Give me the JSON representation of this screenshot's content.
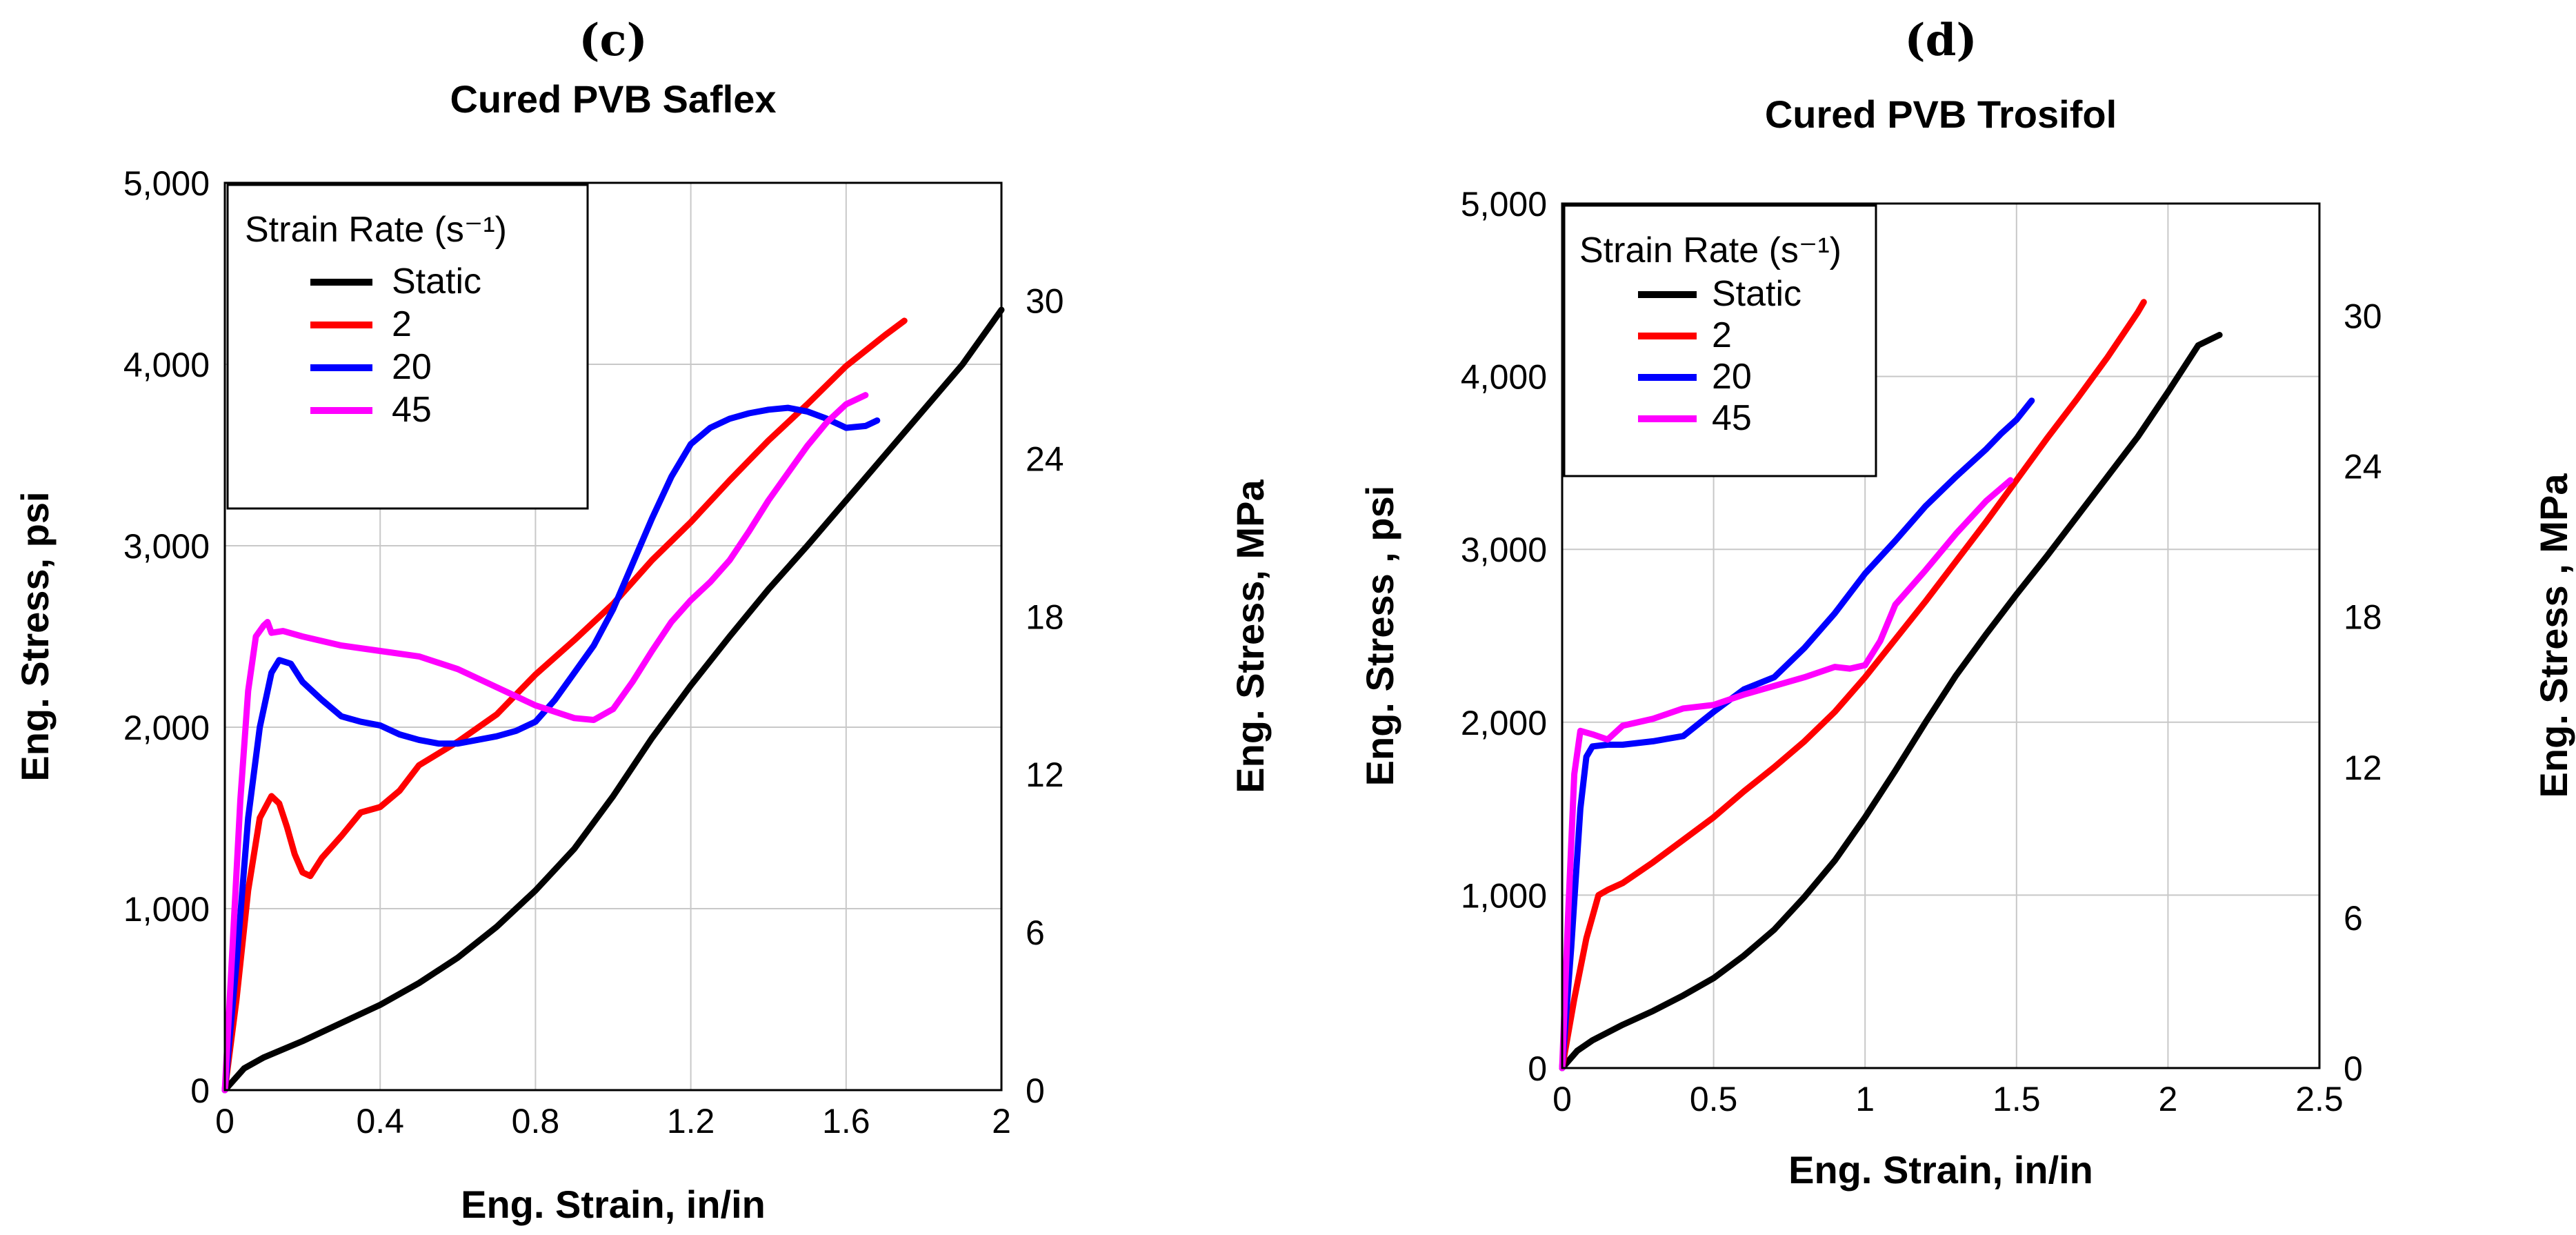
{
  "chart_data": [
    {
      "panel": "(c)",
      "type": "line",
      "title": "Cured PVB Saflex",
      "xlabel": "Eng. Strain, in/in",
      "ylabel": "Eng. Stress, psi",
      "y2label": "Eng. Stress, MPa",
      "xlim": [
        0,
        2
      ],
      "ylim": [
        0,
        5000
      ],
      "y2lim": [
        0,
        34.47
      ],
      "xticks": [
        0,
        0.4,
        0.8,
        1.2,
        1.6,
        2
      ],
      "xtick_labels": [
        "0",
        "0.4",
        "0.8",
        "1.2",
        "1.6",
        "2"
      ],
      "yticks": [
        0,
        1000,
        2000,
        3000,
        4000,
        5000
      ],
      "ytick_labels": [
        "0",
        "1,000",
        "2,000",
        "3,000",
        "4,000",
        "5,000"
      ],
      "y2ticks": [
        0,
        6,
        12,
        18,
        24,
        30
      ],
      "y2tick_labels": [
        "0",
        "6",
        "12",
        "18",
        "24",
        "30"
      ],
      "legend_title": "Strain Rate (s⁻¹)",
      "legend_position": "top-left",
      "grid": true,
      "series": [
        {
          "name": "Static",
          "color": "#000000",
          "x": [
            0,
            0.05,
            0.1,
            0.2,
            0.3,
            0.4,
            0.5,
            0.6,
            0.7,
            0.8,
            0.9,
            1.0,
            1.1,
            1.2,
            1.3,
            1.4,
            1.5,
            1.6,
            1.7,
            1.8,
            1.9,
            2.0
          ],
          "y": [
            0,
            120,
            180,
            270,
            370,
            470,
            590,
            730,
            900,
            1100,
            1330,
            1620,
            1940,
            2230,
            2500,
            2760,
            3000,
            3250,
            3500,
            3750,
            4000,
            4300
          ]
        },
        {
          "name": "2",
          "color": "#ff0000",
          "x": [
            0,
            0.03,
            0.06,
            0.09,
            0.12,
            0.14,
            0.16,
            0.18,
            0.2,
            0.22,
            0.25,
            0.3,
            0.35,
            0.4,
            0.45,
            0.5,
            0.6,
            0.7,
            0.8,
            0.9,
            1.0,
            1.1,
            1.2,
            1.3,
            1.4,
            1.5,
            1.6,
            1.7,
            1.75
          ],
          "y": [
            0,
            500,
            1100,
            1500,
            1620,
            1580,
            1450,
            1300,
            1200,
            1180,
            1280,
            1400,
            1530,
            1560,
            1650,
            1790,
            1920,
            2070,
            2290,
            2480,
            2680,
            2920,
            3130,
            3360,
            3580,
            3780,
            3990,
            4160,
            4240
          ]
        },
        {
          "name": "20",
          "color": "#0000ff",
          "x": [
            0,
            0.03,
            0.06,
            0.09,
            0.12,
            0.14,
            0.17,
            0.2,
            0.25,
            0.3,
            0.35,
            0.4,
            0.45,
            0.5,
            0.55,
            0.6,
            0.65,
            0.7,
            0.75,
            0.8,
            0.85,
            0.9,
            0.95,
            1.0,
            1.05,
            1.1,
            1.15,
            1.2,
            1.25,
            1.3,
            1.35,
            1.4,
            1.45,
            1.5,
            1.55,
            1.6,
            1.65,
            1.68
          ],
          "y": [
            0,
            700,
            1500,
            2000,
            2300,
            2370,
            2350,
            2250,
            2150,
            2060,
            2030,
            2010,
            1960,
            1930,
            1910,
            1910,
            1930,
            1950,
            1980,
            2030,
            2150,
            2300,
            2450,
            2650,
            2900,
            3150,
            3380,
            3560,
            3650,
            3700,
            3730,
            3750,
            3760,
            3740,
            3700,
            3650,
            3660,
            3690
          ]
        },
        {
          "name": "45",
          "color": "#ff00ff",
          "x": [
            0,
            0.02,
            0.04,
            0.06,
            0.08,
            0.1,
            0.11,
            0.12,
            0.15,
            0.2,
            0.3,
            0.4,
            0.5,
            0.6,
            0.7,
            0.8,
            0.9,
            0.95,
            1.0,
            1.05,
            1.1,
            1.15,
            1.2,
            1.25,
            1.3,
            1.35,
            1.4,
            1.45,
            1.5,
            1.55,
            1.6,
            1.65
          ],
          "y": [
            0,
            800,
            1600,
            2200,
            2500,
            2560,
            2580,
            2520,
            2530,
            2500,
            2450,
            2420,
            2390,
            2320,
            2220,
            2120,
            2050,
            2040,
            2100,
            2250,
            2420,
            2580,
            2700,
            2800,
            2920,
            3080,
            3250,
            3400,
            3550,
            3680,
            3780,
            3830
          ]
        }
      ]
    },
    {
      "panel": "(d)",
      "type": "line",
      "title": "Cured PVB Trosifol",
      "xlabel": "Eng. Strain, in/in",
      "ylabel": "Eng. Stress , psi",
      "y2label": "Eng. Stress , MPa",
      "xlim": [
        0,
        2.5
      ],
      "ylim": [
        0,
        5000
      ],
      "y2lim": [
        0,
        34.47
      ],
      "xticks": [
        0,
        0.5,
        1,
        1.5,
        2,
        2.5
      ],
      "xtick_labels": [
        "0",
        "0.5",
        "1",
        "1.5",
        "2",
        "2.5"
      ],
      "yticks": [
        0,
        1000,
        2000,
        3000,
        4000,
        5000
      ],
      "ytick_labels": [
        "0",
        "1,000",
        "2,000",
        "3,000",
        "4,000",
        "5,000"
      ],
      "y2ticks": [
        0,
        6,
        12,
        18,
        24,
        30
      ],
      "y2tick_labels": [
        "0",
        "6",
        "12",
        "18",
        "24",
        "30"
      ],
      "legend_title": "Strain Rate (s⁻¹)",
      "legend_position": "top-left",
      "grid": true,
      "series": [
        {
          "name": "Static",
          "color": "#000000",
          "x": [
            0,
            0.05,
            0.1,
            0.2,
            0.3,
            0.4,
            0.5,
            0.6,
            0.7,
            0.8,
            0.9,
            1.0,
            1.1,
            1.2,
            1.3,
            1.4,
            1.5,
            1.6,
            1.7,
            1.8,
            1.9,
            2.0,
            2.1,
            2.17
          ],
          "y": [
            0,
            100,
            160,
            250,
            330,
            420,
            520,
            650,
            800,
            990,
            1200,
            1450,
            1720,
            2000,
            2270,
            2510,
            2740,
            2960,
            3190,
            3420,
            3650,
            3910,
            4180,
            4240
          ]
        },
        {
          "name": "2",
          "color": "#ff0000",
          "x": [
            0,
            0.04,
            0.08,
            0.12,
            0.15,
            0.2,
            0.3,
            0.4,
            0.5,
            0.6,
            0.7,
            0.8,
            0.9,
            1.0,
            1.1,
            1.2,
            1.3,
            1.4,
            1.5,
            1.6,
            1.7,
            1.8,
            1.9,
            1.92
          ],
          "y": [
            0,
            400,
            750,
            1000,
            1030,
            1070,
            1190,
            1320,
            1450,
            1600,
            1740,
            1890,
            2060,
            2260,
            2480,
            2700,
            2930,
            3160,
            3400,
            3640,
            3870,
            4110,
            4370,
            4430
          ]
        },
        {
          "name": "20",
          "color": "#0000ff",
          "x": [
            0,
            0.03,
            0.06,
            0.08,
            0.1,
            0.15,
            0.2,
            0.3,
            0.4,
            0.5,
            0.6,
            0.7,
            0.8,
            0.9,
            1.0,
            1.1,
            1.2,
            1.3,
            1.4,
            1.45,
            1.5,
            1.55
          ],
          "y": [
            0,
            700,
            1500,
            1800,
            1860,
            1870,
            1870,
            1890,
            1920,
            2060,
            2190,
            2260,
            2430,
            2630,
            2860,
            3050,
            3250,
            3420,
            3580,
            3670,
            3750,
            3860
          ]
        },
        {
          "name": "45",
          "color": "#ff00ff",
          "x": [
            0,
            0.02,
            0.04,
            0.06,
            0.08,
            0.1,
            0.15,
            0.2,
            0.3,
            0.4,
            0.5,
            0.6,
            0.7,
            0.8,
            0.9,
            0.95,
            1.0,
            1.05,
            1.1,
            1.2,
            1.3,
            1.4,
            1.48
          ],
          "y": [
            0,
            900,
            1700,
            1950,
            1940,
            1930,
            1900,
            1980,
            2020,
            2080,
            2100,
            2160,
            2210,
            2260,
            2320,
            2310,
            2330,
            2470,
            2680,
            2880,
            3090,
            3280,
            3400
          ]
        }
      ]
    }
  ]
}
